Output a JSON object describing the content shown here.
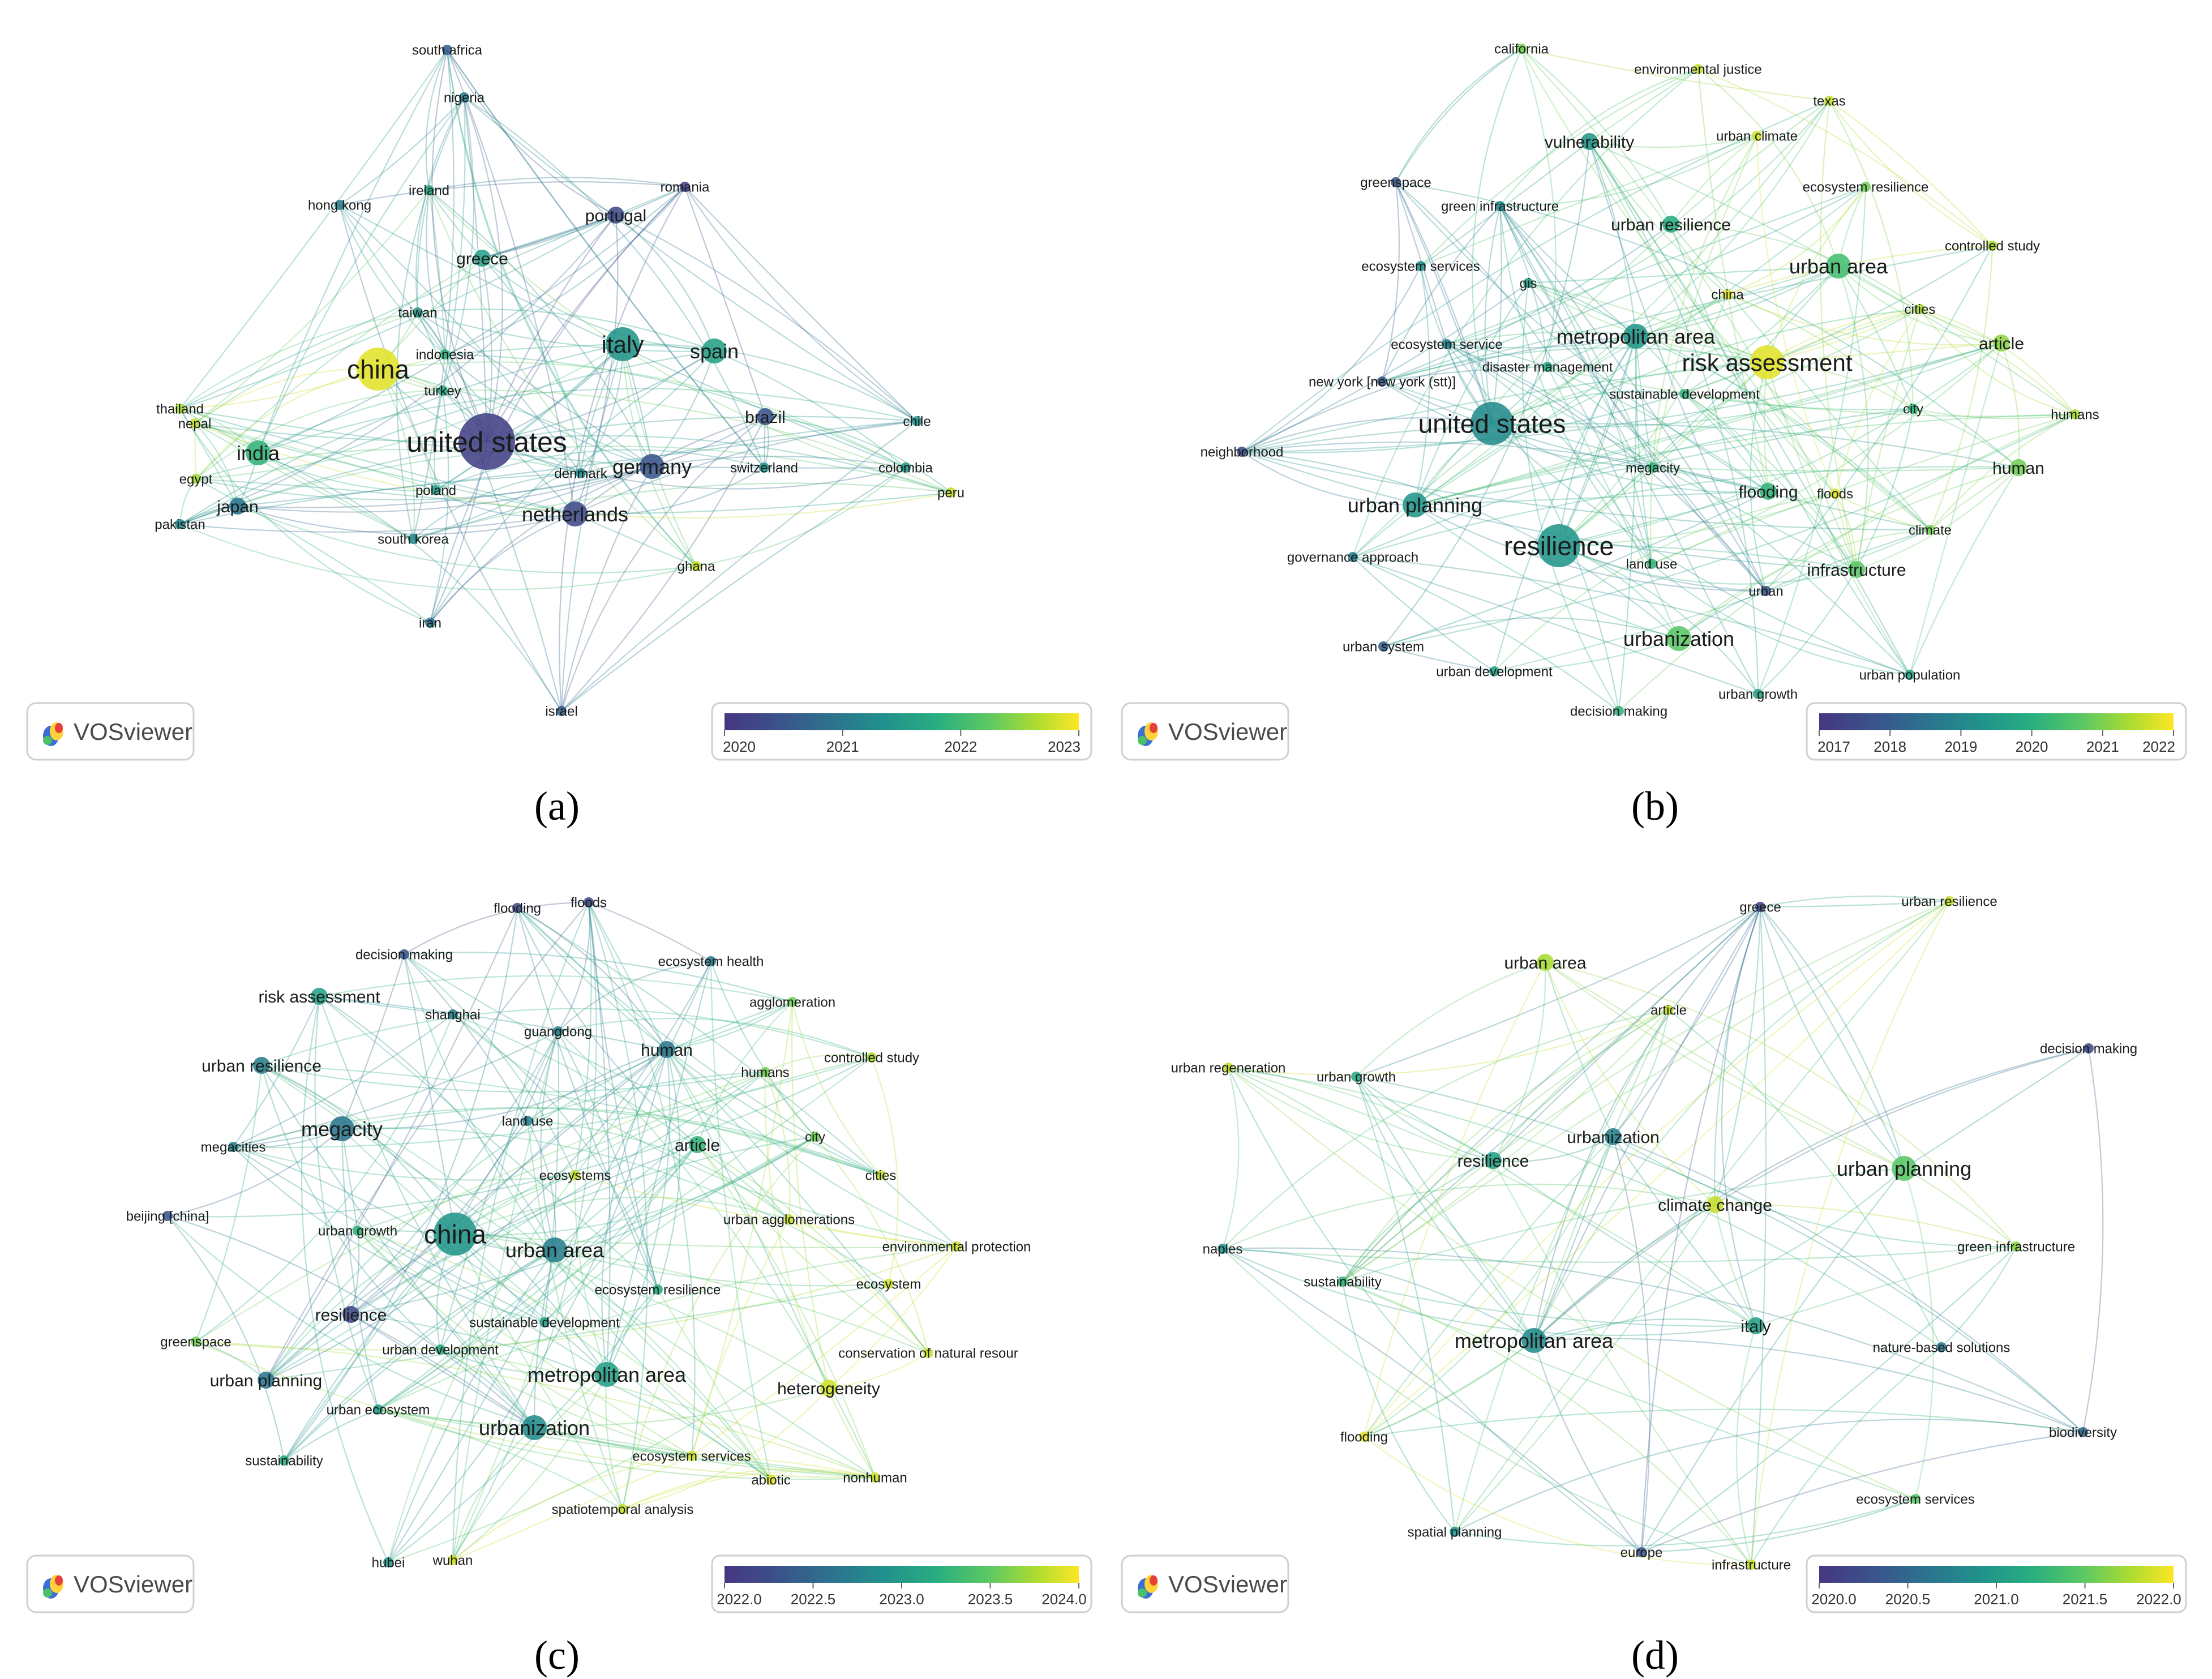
{
  "colors": {
    "scale": [
      "#453781",
      "#3b528b",
      "#2c728e",
      "#21918c",
      "#28ae80",
      "#5ec962",
      "#addc30",
      "#fde725"
    ],
    "edge_opacity": 0.32
  },
  "panels": [
    {
      "id": "a",
      "caption": "(a)",
      "logo_text": "VOSviewer",
      "legend_ticks": [
        "2020",
        "2021",
        "2022",
        "2023"
      ],
      "nodes": [
        {
          "label": "south africa",
          "t": 0.2,
          "s": 1
        },
        {
          "label": "nigeria",
          "t": 0.35,
          "s": 1
        },
        {
          "label": "ireland",
          "t": 0.55,
          "s": 1
        },
        {
          "label": "romania",
          "t": 0.05,
          "s": 1
        },
        {
          "label": "hong kong",
          "t": 0.35,
          "s": 1
        },
        {
          "label": "portugal",
          "t": 0.1,
          "s": 2
        },
        {
          "label": "greece",
          "t": 0.5,
          "s": 2
        },
        {
          "label": "taiwan",
          "t": 0.45,
          "s": 1
        },
        {
          "label": "china",
          "t": 0.95,
          "s": 5
        },
        {
          "label": "indonesia",
          "t": 0.6,
          "s": 1
        },
        {
          "label": "italy",
          "t": 0.45,
          "s": 4
        },
        {
          "label": "spain",
          "t": 0.5,
          "s": 3
        },
        {
          "label": "turkey",
          "t": 0.55,
          "s": 1
        },
        {
          "label": "thailand",
          "t": 0.85,
          "s": 1
        },
        {
          "label": "nepal",
          "t": 0.9,
          "s": 1
        },
        {
          "label": "brazil",
          "t": 0.15,
          "s": 2
        },
        {
          "label": "chile",
          "t": 0.45,
          "s": 1
        },
        {
          "label": "india",
          "t": 0.6,
          "s": 3
        },
        {
          "label": "united states",
          "t": 0.05,
          "s": 6
        },
        {
          "label": "egypt",
          "t": 0.85,
          "s": 1
        },
        {
          "label": "germany",
          "t": 0.15,
          "s": 3
        },
        {
          "label": "switzerland",
          "t": 0.45,
          "s": 1
        },
        {
          "label": "colombia",
          "t": 0.45,
          "s": 1
        },
        {
          "label": "denmark",
          "t": 0.4,
          "s": 1
        },
        {
          "label": "peru",
          "t": 0.9,
          "s": 1
        },
        {
          "label": "japan",
          "t": 0.3,
          "s": 2
        },
        {
          "label": "poland",
          "t": 0.5,
          "s": 1
        },
        {
          "label": "netherlands",
          "t": 0.1,
          "s": 3
        },
        {
          "label": "pakistan",
          "t": 0.4,
          "s": 1
        },
        {
          "label": "south korea",
          "t": 0.4,
          "s": 1
        },
        {
          "label": "ghana",
          "t": 0.9,
          "s": 1
        },
        {
          "label": "iran",
          "t": 0.3,
          "s": 1
        },
        {
          "label": "israel",
          "t": 0.2,
          "s": 1
        }
      ]
    },
    {
      "id": "b",
      "caption": "(b)",
      "logo_text": "VOSviewer",
      "legend_ticks": [
        "2017",
        "2018",
        "2019",
        "2020",
        "2021",
        "2022"
      ],
      "nodes": [
        {
          "label": "california",
          "t": 0.75,
          "s": 1
        },
        {
          "label": "environmental justice",
          "t": 0.9,
          "s": 1
        },
        {
          "label": "texas",
          "t": 0.9,
          "s": 1
        },
        {
          "label": "urban climate",
          "t": 0.92,
          "s": 1
        },
        {
          "label": "vulnerability",
          "t": 0.45,
          "s": 2
        },
        {
          "label": "greenspace",
          "t": 0.15,
          "s": 1
        },
        {
          "label": "ecosystem resilience",
          "t": 0.75,
          "s": 1
        },
        {
          "label": "green infrastructure",
          "t": 0.4,
          "s": 1
        },
        {
          "label": "urban resilience",
          "t": 0.55,
          "s": 2
        },
        {
          "label": "controlled study",
          "t": 0.85,
          "s": 1
        },
        {
          "label": "urban area",
          "t": 0.65,
          "s": 3
        },
        {
          "label": "ecosystem services",
          "t": 0.45,
          "s": 1
        },
        {
          "label": "gis",
          "t": 0.5,
          "s": 1
        },
        {
          "label": "china",
          "t": 0.95,
          "s": 1
        },
        {
          "label": "cities",
          "t": 0.85,
          "s": 1
        },
        {
          "label": "metropolitan area",
          "t": 0.45,
          "s": 3
        },
        {
          "label": "article",
          "t": 0.8,
          "s": 2
        },
        {
          "label": "ecosystem service",
          "t": 0.35,
          "s": 1
        },
        {
          "label": "disaster management",
          "t": 0.55,
          "s": 1
        },
        {
          "label": "new york [new york (stt)]",
          "t": 0.15,
          "s": 1
        },
        {
          "label": "sustainable development",
          "t": 0.6,
          "s": 1
        },
        {
          "label": "risk assessment",
          "t": 0.95,
          "s": 4
        },
        {
          "label": "city",
          "t": 0.6,
          "s": 1
        },
        {
          "label": "humans",
          "t": 0.85,
          "s": 1
        },
        {
          "label": "united states",
          "t": 0.4,
          "s": 5
        },
        {
          "label": "neighborhood",
          "t": 0.1,
          "s": 1
        },
        {
          "label": "megacity",
          "t": 0.6,
          "s": 1
        },
        {
          "label": "human",
          "t": 0.75,
          "s": 2
        },
        {
          "label": "urban planning",
          "t": 0.45,
          "s": 3
        },
        {
          "label": "flooding",
          "t": 0.6,
          "s": 2
        },
        {
          "label": "floods",
          "t": 0.95,
          "s": 1
        },
        {
          "label": "climate",
          "t": 0.75,
          "s": 1
        },
        {
          "label": "resilience",
          "t": 0.45,
          "s": 5
        },
        {
          "label": "governance approach",
          "t": 0.35,
          "s": 1
        },
        {
          "label": "land use",
          "t": 0.6,
          "s": 1
        },
        {
          "label": "infrastructure",
          "t": 0.7,
          "s": 2
        },
        {
          "label": "urban",
          "t": 0.15,
          "s": 1
        },
        {
          "label": "urbanization",
          "t": 0.7,
          "s": 3
        },
        {
          "label": "urban system",
          "t": 0.2,
          "s": 1
        },
        {
          "label": "urban development",
          "t": 0.5,
          "s": 1
        },
        {
          "label": "urban population",
          "t": 0.5,
          "s": 1
        },
        {
          "label": "urban growth",
          "t": 0.5,
          "s": 1
        },
        {
          "label": "decision making",
          "t": 0.6,
          "s": 1
        }
      ]
    },
    {
      "id": "c",
      "caption": "(c)",
      "logo_text": "VOSviewer",
      "legend_ticks": [
        "2022.0",
        "2022.5",
        "2023.0",
        "2023.5",
        "2024.0"
      ],
      "nodes": [
        {
          "label": "flooding",
          "t": 0.1,
          "s": 1
        },
        {
          "label": "floods",
          "t": 0.1,
          "s": 1
        },
        {
          "label": "decision making",
          "t": 0.15,
          "s": 1
        },
        {
          "label": "ecosystem health",
          "t": 0.3,
          "s": 1
        },
        {
          "label": "risk assessment",
          "t": 0.5,
          "s": 2
        },
        {
          "label": "agglomeration",
          "t": 0.75,
          "s": 1
        },
        {
          "label": "shanghai",
          "t": 0.35,
          "s": 1
        },
        {
          "label": "guangdong",
          "t": 0.35,
          "s": 1
        },
        {
          "label": "human",
          "t": 0.3,
          "s": 2
        },
        {
          "label": "controlled study",
          "t": 0.85,
          "s": 1
        },
        {
          "label": "urban resilience",
          "t": 0.35,
          "s": 2
        },
        {
          "label": "humans",
          "t": 0.75,
          "s": 1
        },
        {
          "label": "megacity",
          "t": 0.3,
          "s": 3
        },
        {
          "label": "land use",
          "t": 0.35,
          "s": 1
        },
        {
          "label": "megacities",
          "t": 0.35,
          "s": 1
        },
        {
          "label": "article",
          "t": 0.6,
          "s": 2
        },
        {
          "label": "city",
          "t": 0.75,
          "s": 1
        },
        {
          "label": "cities",
          "t": 0.9,
          "s": 1
        },
        {
          "label": "ecosystems",
          "t": 0.9,
          "s": 1
        },
        {
          "label": "beijing [china]",
          "t": 0.15,
          "s": 1
        },
        {
          "label": "urban agglomerations",
          "t": 0.9,
          "s": 1
        },
        {
          "label": "urban growth",
          "t": 0.6,
          "s": 1
        },
        {
          "label": "china",
          "t": 0.45,
          "s": 5
        },
        {
          "label": "urban area",
          "t": 0.35,
          "s": 3
        },
        {
          "label": "environmental protection",
          "t": 0.92,
          "s": 1
        },
        {
          "label": "ecosystem resilience",
          "t": 0.55,
          "s": 1
        },
        {
          "label": "ecosystem",
          "t": 0.92,
          "s": 1
        },
        {
          "label": "resilience",
          "t": 0.1,
          "s": 2
        },
        {
          "label": "sustainable development",
          "t": 0.5,
          "s": 1
        },
        {
          "label": "greenspace",
          "t": 0.75,
          "s": 1
        },
        {
          "label": "urban development",
          "t": 0.55,
          "s": 1
        },
        {
          "label": "conservation of natural resour",
          "t": 0.92,
          "s": 1
        },
        {
          "label": "urban planning",
          "t": 0.3,
          "s": 2
        },
        {
          "label": "metropolitan area",
          "t": 0.5,
          "s": 3
        },
        {
          "label": "heterogeneity",
          "t": 0.92,
          "s": 2
        },
        {
          "label": "urban ecosystem",
          "t": 0.45,
          "s": 1
        },
        {
          "label": "urbanization",
          "t": 0.4,
          "s": 3
        },
        {
          "label": "sustainability",
          "t": 0.55,
          "s": 1
        },
        {
          "label": "ecosystem services",
          "t": 0.92,
          "s": 1
        },
        {
          "label": "abiotic",
          "t": 0.95,
          "s": 1
        },
        {
          "label": "nonhuman",
          "t": 0.92,
          "s": 1
        },
        {
          "label": "spatiotemporal analysis",
          "t": 0.9,
          "s": 1
        },
        {
          "label": "hubei",
          "t": 0.45,
          "s": 1
        },
        {
          "label": "wuhan",
          "t": 0.92,
          "s": 1
        }
      ]
    },
    {
      "id": "d",
      "caption": "(d)",
      "logo_text": "VOSviewer",
      "legend_ticks": [
        "2020.0",
        "2020.5",
        "2021.0",
        "2021.5",
        "2022.0"
      ],
      "nodes": [
        {
          "label": "greece",
          "t": 0.1,
          "s": 1
        },
        {
          "label": "urban resilience",
          "t": 0.9,
          "s": 1
        },
        {
          "label": "urban area",
          "t": 0.85,
          "s": 2
        },
        {
          "label": "article",
          "t": 0.9,
          "s": 1
        },
        {
          "label": "urban regeneration",
          "t": 0.9,
          "s": 1
        },
        {
          "label": "urban growth",
          "t": 0.55,
          "s": 1
        },
        {
          "label": "decision making",
          "t": 0.1,
          "s": 1
        },
        {
          "label": "urbanization",
          "t": 0.35,
          "s": 2
        },
        {
          "label": "resilience",
          "t": 0.5,
          "s": 2
        },
        {
          "label": "urban planning",
          "t": 0.7,
          "s": 3
        },
        {
          "label": "climate change",
          "t": 0.9,
          "s": 2
        },
        {
          "label": "naples",
          "t": 0.45,
          "s": 1
        },
        {
          "label": "green infrastructure",
          "t": 0.8,
          "s": 1
        },
        {
          "label": "sustainability",
          "t": 0.6,
          "s": 1
        },
        {
          "label": "italy",
          "t": 0.5,
          "s": 2
        },
        {
          "label": "metropolitan area",
          "t": 0.4,
          "s": 3
        },
        {
          "label": "nature-based solutions",
          "t": 0.3,
          "s": 1
        },
        {
          "label": "flooding",
          "t": 0.95,
          "s": 1
        },
        {
          "label": "biodiversity",
          "t": 0.25,
          "s": 1
        },
        {
          "label": "ecosystem services",
          "t": 0.7,
          "s": 1
        },
        {
          "label": "spatial planning",
          "t": 0.45,
          "s": 1
        },
        {
          "label": "europe",
          "t": 0.15,
          "s": 1
        },
        {
          "label": "infrastructure",
          "t": 0.9,
          "s": 1
        }
      ]
    }
  ]
}
